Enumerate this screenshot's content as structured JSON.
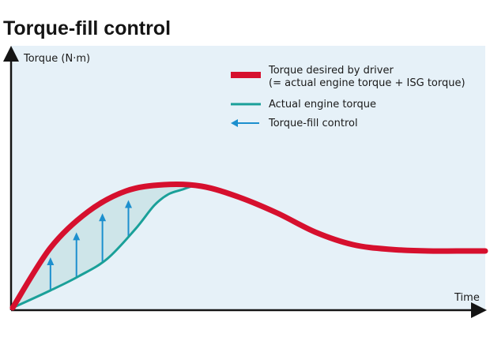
{
  "chart_data": {
    "type": "line",
    "title": "Torque-fill control",
    "ylabel": "Torque (N·m)",
    "xlabel": "Time",
    "xlim": [
      0,
      100
    ],
    "ylim": [
      0,
      100
    ],
    "grid": false,
    "legend_position": "top-right",
    "series": [
      {
        "name": "Torque desired by driver",
        "name_line2": "(= actual engine torque + ISG torque)",
        "color": "#d6102e",
        "x": [
          0,
          8,
          16,
          24,
          32,
          40,
          48,
          56,
          64,
          72,
          80,
          88,
          94,
          100
        ],
        "y": [
          0,
          38,
          61,
          74,
          78,
          77,
          70,
          60,
          48,
          40,
          37,
          36,
          36,
          36
        ]
      },
      {
        "name": "Actual engine torque",
        "color": "#1aa099",
        "x": [
          0,
          8,
          14,
          20,
          26,
          30,
          33,
          36,
          38,
          40
        ],
        "y": [
          0,
          11,
          20,
          31,
          50,
          65,
          72,
          75,
          77,
          77
        ]
      }
    ],
    "annotations": {
      "name": "Torque-fill control",
      "color": "#1c8fce",
      "arrows_x": [
        8,
        13.5,
        19,
        24.5
      ]
    }
  }
}
